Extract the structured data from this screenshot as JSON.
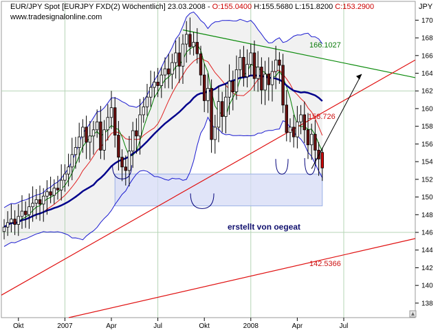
{
  "header": {
    "symbol": "EUR/JPY Spot [EURJPY FXD(2)  Wöchentlich] 23.03.2008 - ",
    "open": "O:155.0400",
    "high": " H:155.5680",
    "low": " L:151.8200",
    "close": " C:153.2900",
    "website": "www.tradesignalonline.com",
    "currency": "JPY"
  },
  "annotations": {
    "resistance_level": "166.1027",
    "upper_support_level": "158.726",
    "lower_support_level": "142.5366",
    "credit": "erstellt von oegeat"
  },
  "colors": {
    "price_candles": "#000000",
    "bollinger_bands": "#1a1ad0",
    "band_fill": "#f1f1f1",
    "ma_fast": "#008000",
    "ma_medium": "#e02020",
    "ma_slow": "#00008c",
    "trend_resistance": "#0a8a0a",
    "trend_support": "#e01010",
    "support_zone": "#d6dbf6",
    "grid": "#b5d4b5"
  },
  "chart_data": {
    "type": "candlestick",
    "title": "EUR/JPY Spot [EURJPY FXD(2) Wöchentlich]",
    "xlabel": "",
    "ylabel": "JPY",
    "ylim": [
      137,
      171
    ],
    "y_ticks": [
      138,
      140,
      142,
      144,
      146,
      148,
      150,
      152,
      154,
      156,
      158,
      160,
      162,
      164,
      166,
      168,
      170
    ],
    "x_tick_labels": [
      "Okt",
      "2007",
      "Apr",
      "Jul",
      "Okt",
      "2008",
      "Apr",
      "Jul"
    ],
    "x_tick_weeks": [
      4,
      17,
      30,
      43,
      56,
      69,
      82,
      95
    ],
    "grid": true,
    "legend": "none",
    "weeks_total": 102,
    "last_bar": {
      "date": "23.03.2008",
      "open": 155.04,
      "high": 155.568,
      "low": 151.82,
      "close": 153.29
    },
    "closes": [
      146.6,
      147.1,
      147.5,
      146.9,
      147.8,
      148.4,
      148.0,
      148.9,
      149.3,
      149.7,
      149.2,
      150.1,
      150.6,
      150.2,
      151.0,
      150.8,
      151.9,
      152.6,
      153.4,
      154.8,
      155.6,
      156.8,
      157.9,
      156.2,
      156.9,
      157.6,
      158.5,
      155.3,
      157.6,
      159.0,
      160.1,
      157.0,
      154.5,
      153.4,
      153.0,
      155.2,
      157.5,
      156.9,
      159.3,
      160.2,
      161.3,
      162.4,
      163.0,
      162.6,
      163.8,
      164.5,
      163.9,
      165.2,
      166.3,
      164.8,
      167.3,
      168.4,
      167.0,
      167.5,
      166.2,
      163.8,
      160.9,
      162.3,
      156.5,
      157.9,
      160.8,
      159.1,
      161.3,
      163.1,
      161.9,
      164.4,
      165.8,
      163.6,
      165.0,
      166.3,
      163.4,
      164.7,
      162.1,
      163.9,
      162.7,
      164.2,
      165.5,
      164.9,
      160.4,
      157.3,
      157.9,
      156.8,
      158.5,
      159.3,
      157.6,
      155.9,
      157.1,
      155.3,
      154.3,
      153.29
    ]
  }
}
